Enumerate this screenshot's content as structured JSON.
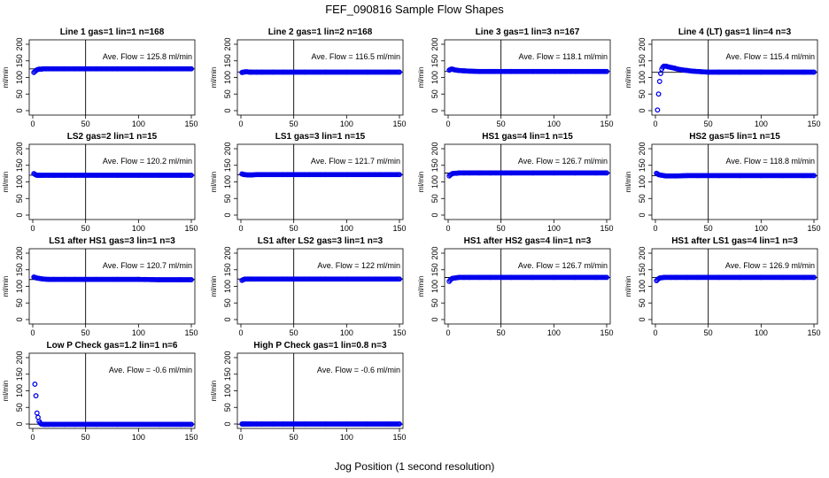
{
  "figure": {
    "title": "FEF_090816  Sample Flow Shapes",
    "xlabel": "Jog Position (1 second resolution)"
  },
  "colors": {
    "points": "#0000ee",
    "axis": "#000000",
    "background": "#ffffff"
  },
  "chart_data": [
    {
      "type": "scatter",
      "title": "Line 1 gas=1 lin=1 n=168",
      "ylabel": "ml/min",
      "xlim": [
        0,
        150
      ],
      "ylim": [
        0,
        200
      ],
      "xticks": [
        0,
        50,
        100,
        150
      ],
      "yticks": [
        0,
        50,
        100,
        150,
        200
      ],
      "vline": 50,
      "hline": 125.8,
      "annotation": "Ave. Flow =  125.8  ml/min",
      "series": [
        {
          "name": "flow",
          "x": [
            1,
            2,
            3,
            4,
            5,
            6,
            8,
            10,
            12,
            15,
            20,
            30,
            40,
            50,
            60,
            80,
            100,
            120,
            140,
            150
          ],
          "y": [
            115,
            118,
            121,
            123,
            124,
            125,
            125,
            126,
            126,
            126,
            126,
            126,
            126,
            126,
            126,
            126,
            126,
            126,
            126,
            126
          ]
        }
      ]
    },
    {
      "type": "scatter",
      "title": "Line 2 gas=1 lin=2 n=168",
      "ylabel": "ml/min",
      "xlim": [
        0,
        150
      ],
      "ylim": [
        0,
        200
      ],
      "xticks": [
        0,
        50,
        100,
        150
      ],
      "yticks": [
        0,
        50,
        100,
        150,
        200
      ],
      "vline": 50,
      "hline": 116.5,
      "annotation": "Ave. Flow =  116.5  ml/min",
      "series": [
        {
          "name": "flow",
          "x": [
            1,
            2,
            3,
            4,
            6,
            8,
            10,
            15,
            20,
            30,
            40,
            50,
            60,
            80,
            100,
            120,
            140,
            150
          ],
          "y": [
            115,
            116,
            116,
            117,
            117,
            116,
            116,
            116,
            116,
            116,
            116,
            116,
            116,
            116,
            116,
            116,
            116,
            116
          ]
        }
      ]
    },
    {
      "type": "scatter",
      "title": "Line 3 gas=1 lin=3 n=167",
      "ylabel": "ml/min",
      "xlim": [
        0,
        150
      ],
      "ylim": [
        0,
        200
      ],
      "xticks": [
        0,
        50,
        100,
        150
      ],
      "yticks": [
        0,
        50,
        100,
        150,
        200
      ],
      "vline": 50,
      "hline": 118.1,
      "annotation": "Ave. Flow =  118.1  ml/min",
      "series": [
        {
          "name": "flow",
          "x": [
            1,
            2,
            3,
            4,
            5,
            6,
            8,
            10,
            15,
            20,
            30,
            40,
            50,
            60,
            80,
            100,
            120,
            140,
            150
          ],
          "y": [
            122,
            124,
            125,
            125,
            124,
            123,
            122,
            121,
            120,
            119,
            118,
            118,
            118,
            118,
            118,
            118,
            118,
            118,
            118
          ]
        }
      ]
    },
    {
      "type": "scatter",
      "title": "Line 4 (LT) gas=1 lin=4 n=3",
      "ylabel": "ml/min",
      "xlim": [
        0,
        150
      ],
      "ylim": [
        0,
        200
      ],
      "xticks": [
        0,
        50,
        100,
        150
      ],
      "yticks": [
        0,
        50,
        100,
        150,
        200
      ],
      "vline": 50,
      "hline": 115.4,
      "annotation": "Ave. Flow =  115.4  ml/min",
      "series": [
        {
          "name": "flow",
          "x": [
            2,
            3,
            4,
            5,
            6,
            7,
            8,
            10,
            12,
            15,
            18,
            20,
            25,
            30,
            35,
            40,
            50,
            60,
            80,
            100,
            120,
            140,
            150
          ],
          "y": [
            2,
            50,
            88,
            112,
            125,
            131,
            134,
            134,
            132,
            130,
            128,
            126,
            123,
            121,
            119,
            118,
            116,
            116,
            116,
            116,
            116,
            116,
            116
          ]
        }
      ]
    },
    {
      "type": "scatter",
      "title": "LS2 gas=2 lin=1 n=15",
      "ylabel": "ml/min",
      "xlim": [
        0,
        150
      ],
      "ylim": [
        0,
        200
      ],
      "xticks": [
        0,
        50,
        100,
        150
      ],
      "yticks": [
        0,
        50,
        100,
        150,
        200
      ],
      "vline": 50,
      "hline": 120.2,
      "annotation": "Ave. Flow =  120.2  ml/min",
      "series": [
        {
          "name": "flow",
          "x": [
            1,
            2,
            3,
            4,
            6,
            8,
            10,
            15,
            20,
            30,
            40,
            50,
            60,
            80,
            100,
            120,
            140,
            150
          ],
          "y": [
            125,
            123,
            121,
            120,
            120,
            120,
            120,
            120,
            120,
            120,
            120,
            120,
            120,
            120,
            120,
            120,
            120,
            120
          ]
        }
      ]
    },
    {
      "type": "scatter",
      "title": "LS1 gas=3 lin=1 n=15",
      "ylabel": "ml/min",
      "xlim": [
        0,
        150
      ],
      "ylim": [
        0,
        200
      ],
      "xticks": [
        0,
        50,
        100,
        150
      ],
      "yticks": [
        0,
        50,
        100,
        150,
        200
      ],
      "vline": 50,
      "hline": 121.7,
      "annotation": "Ave. Flow =  121.7  ml/min",
      "series": [
        {
          "name": "flow",
          "x": [
            1,
            2,
            3,
            4,
            6,
            8,
            10,
            15,
            20,
            30,
            40,
            50,
            60,
            80,
            100,
            120,
            140,
            150
          ],
          "y": [
            124,
            123,
            122,
            122,
            121,
            121,
            121,
            122,
            122,
            122,
            122,
            122,
            122,
            122,
            122,
            122,
            122,
            122
          ]
        }
      ]
    },
    {
      "type": "scatter",
      "title": "HS1 gas=4 lin=1 n=15",
      "ylabel": "ml/min",
      "xlim": [
        0,
        150
      ],
      "ylim": [
        0,
        200
      ],
      "xticks": [
        0,
        50,
        100,
        150
      ],
      "yticks": [
        0,
        50,
        100,
        150,
        200
      ],
      "vline": 50,
      "hline": 126.7,
      "annotation": "Ave. Flow =  126.7  ml/min",
      "series": [
        {
          "name": "flow",
          "x": [
            1,
            2,
            3,
            4,
            6,
            8,
            10,
            15,
            20,
            30,
            40,
            50,
            60,
            80,
            100,
            120,
            140,
            150
          ],
          "y": [
            118,
            121,
            123,
            125,
            126,
            126,
            127,
            127,
            127,
            127,
            127,
            127,
            127,
            127,
            127,
            127,
            127,
            127
          ]
        }
      ]
    },
    {
      "type": "scatter",
      "title": "HS2 gas=5 lin=1 n=15",
      "ylabel": "ml/min",
      "xlim": [
        0,
        150
      ],
      "ylim": [
        0,
        200
      ],
      "xticks": [
        0,
        50,
        100,
        150
      ],
      "yticks": [
        0,
        50,
        100,
        150,
        200
      ],
      "vline": 50,
      "hline": 118.8,
      "annotation": "Ave. Flow =  118.8  ml/min",
      "series": [
        {
          "name": "flow",
          "x": [
            1,
            2,
            3,
            4,
            6,
            8,
            10,
            15,
            20,
            30,
            40,
            50,
            60,
            80,
            100,
            120,
            140,
            150
          ],
          "y": [
            126,
            124,
            122,
            121,
            120,
            119,
            118,
            118,
            118,
            119,
            119,
            119,
            119,
            119,
            119,
            119,
            119,
            119
          ]
        }
      ]
    },
    {
      "type": "scatter",
      "title": "LS1 after HS1 gas=3 lin=1 n=3",
      "ylabel": "ml/min",
      "xlim": [
        0,
        150
      ],
      "ylim": [
        0,
        200
      ],
      "xticks": [
        0,
        50,
        100,
        150
      ],
      "yticks": [
        0,
        50,
        100,
        150,
        200
      ],
      "vline": 50,
      "hline": 120.7,
      "annotation": "Ave. Flow =  120.7  ml/min",
      "series": [
        {
          "name": "flow",
          "x": [
            1,
            2,
            3,
            4,
            6,
            8,
            10,
            15,
            20,
            30,
            40,
            50,
            60,
            80,
            100,
            120,
            140,
            150
          ],
          "y": [
            128,
            127,
            126,
            125,
            124,
            123,
            122,
            121,
            121,
            121,
            121,
            121,
            121,
            121,
            121,
            120,
            120,
            120
          ]
        }
      ]
    },
    {
      "type": "scatter",
      "title": "LS1 after LS2 gas=3 lin=1 n=3",
      "ylabel": "ml/min",
      "xlim": [
        0,
        150
      ],
      "ylim": [
        0,
        200
      ],
      "xticks": [
        0,
        50,
        100,
        150
      ],
      "yticks": [
        0,
        50,
        100,
        150,
        200
      ],
      "vline": 50,
      "hline": 122,
      "annotation": "Ave. Flow =  122  ml/min",
      "series": [
        {
          "name": "flow",
          "x": [
            1,
            2,
            3,
            4,
            6,
            8,
            10,
            15,
            20,
            30,
            40,
            50,
            60,
            80,
            100,
            120,
            140,
            150
          ],
          "y": [
            118,
            120,
            121,
            122,
            122,
            122,
            122,
            122,
            122,
            122,
            122,
            122,
            122,
            122,
            122,
            122,
            122,
            122
          ]
        }
      ]
    },
    {
      "type": "scatter",
      "title": "HS1 after HS2 gas=4 lin=1 n=3",
      "ylabel": "ml/min",
      "xlim": [
        0,
        150
      ],
      "ylim": [
        0,
        200
      ],
      "xticks": [
        0,
        50,
        100,
        150
      ],
      "yticks": [
        0,
        50,
        100,
        150,
        200
      ],
      "vline": 50,
      "hline": 126.7,
      "annotation": "Ave. Flow =  126.7  ml/min",
      "series": [
        {
          "name": "flow",
          "x": [
            1,
            2,
            3,
            4,
            6,
            8,
            10,
            15,
            20,
            30,
            40,
            50,
            60,
            80,
            100,
            120,
            140,
            150
          ],
          "y": [
            115,
            119,
            122,
            124,
            125,
            126,
            127,
            127,
            127,
            127,
            127,
            127,
            127,
            127,
            127,
            127,
            127,
            127
          ]
        }
      ]
    },
    {
      "type": "scatter",
      "title": "HS1 after LS1 gas=4 lin=1 n=3",
      "ylabel": "ml/min",
      "xlim": [
        0,
        150
      ],
      "ylim": [
        0,
        200
      ],
      "xticks": [
        0,
        50,
        100,
        150
      ],
      "yticks": [
        0,
        50,
        100,
        150,
        200
      ],
      "vline": 50,
      "hline": 126.9,
      "annotation": "Ave. Flow =  126.9  ml/min",
      "series": [
        {
          "name": "flow",
          "x": [
            1,
            2,
            3,
            4,
            6,
            8,
            10,
            15,
            20,
            30,
            40,
            50,
            60,
            80,
            100,
            120,
            140,
            150
          ],
          "y": [
            117,
            120,
            123,
            125,
            126,
            127,
            127,
            127,
            127,
            127,
            127,
            127,
            127,
            127,
            127,
            127,
            127,
            127
          ]
        }
      ]
    },
    {
      "type": "scatter",
      "title": "Low P Check gas=1.2 lin=1 n=6",
      "ylabel": "ml/min",
      "xlim": [
        0,
        150
      ],
      "ylim": [
        0,
        200
      ],
      "xticks": [
        0,
        50,
        100,
        150
      ],
      "yticks": [
        0,
        50,
        100,
        150,
        200
      ],
      "vline": 50,
      "hline": -0.6,
      "annotation": "Ave. Flow =  -0.6  ml/min",
      "series": [
        {
          "name": "flow",
          "x": [
            2,
            3,
            4,
            5,
            6,
            7,
            8,
            10,
            12,
            15,
            20,
            30,
            40,
            50,
            60,
            80,
            100,
            120,
            140,
            150
          ],
          "y": [
            120,
            85,
            33,
            20,
            8,
            3,
            0,
            -1,
            -1,
            -1,
            -1,
            -1,
            -1,
            -1,
            -1,
            -1,
            -1,
            -1,
            -1,
            -1
          ]
        }
      ]
    },
    {
      "type": "scatter",
      "title": "High P Check gas=1 lin=0.8 n=3",
      "ylabel": "ml/min",
      "xlim": [
        0,
        150
      ],
      "ylim": [
        0,
        200
      ],
      "xticks": [
        0,
        50,
        100,
        150
      ],
      "yticks": [
        0,
        50,
        100,
        150,
        200
      ],
      "vline": 50,
      "hline": -0.6,
      "annotation": "Ave. Flow =  -0.6  ml/min",
      "series": [
        {
          "name": "flow",
          "x": [
            1,
            2,
            3,
            4,
            6,
            8,
            10,
            15,
            20,
            30,
            40,
            50,
            60,
            80,
            100,
            120,
            140,
            150
          ],
          "y": [
            0,
            0,
            0,
            0,
            0,
            0,
            0,
            0,
            0,
            0,
            0,
            0,
            0,
            0,
            0,
            0,
            0,
            0
          ]
        }
      ]
    }
  ]
}
